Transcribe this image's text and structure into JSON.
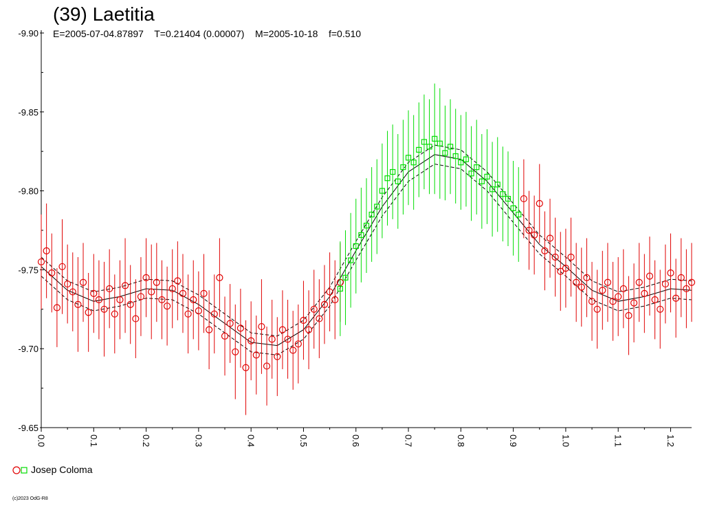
{
  "header": {
    "title": "(39) Laetitia",
    "subtitle": "E=2005-07-04.87897    T=0.21404 (0.00007)    M=2005-10-18    f=0.510"
  },
  "legend": {
    "label": "Josep Coloma"
  },
  "copyright": "(c)2023 OdG-R8",
  "colors": {
    "series_red": "#e00000",
    "series_green": "#00dd00",
    "model": "#000000"
  },
  "chart_data": {
    "type": "scatter",
    "title": "(39) Laetitia",
    "xlabel": "",
    "ylabel": "",
    "xlim": [
      0.0,
      1.24
    ],
    "ylim": [
      -9.65,
      -9.9
    ],
    "y_axis_inverted": true,
    "x_ticks": [
      "0.0",
      "0.1",
      "0.2",
      "0.3",
      "0.4",
      "0.5",
      "0.6",
      "0.7",
      "0.8",
      "0.9",
      "1.0",
      "1.1",
      "1.2"
    ],
    "y_ticks": [
      "-9.90",
      "-9.85",
      "-9.80",
      "-9.75",
      "-9.70",
      "-9.65"
    ],
    "x_tick_values": [
      0.0,
      0.1,
      0.2,
      0.3,
      0.4,
      0.5,
      0.6,
      0.7,
      0.8,
      0.9,
      1.0,
      1.1,
      1.2
    ],
    "y_tick_values": [
      -9.9,
      -9.85,
      -9.8,
      -9.75,
      -9.7,
      -9.65
    ],
    "grid": false,
    "legend_position": "bottom-left",
    "model_curve": {
      "x": [
        0.0,
        0.05,
        0.1,
        0.15,
        0.2,
        0.25,
        0.3,
        0.35,
        0.4,
        0.45,
        0.5,
        0.55,
        0.6,
        0.65,
        0.7,
        0.75,
        0.8,
        0.85,
        0.9,
        0.95,
        1.0,
        1.05,
        1.1,
        1.15,
        1.2,
        1.24
      ],
      "y": [
        -9.752,
        -9.737,
        -9.73,
        -9.733,
        -9.738,
        -9.737,
        -9.728,
        -9.716,
        -9.704,
        -9.702,
        -9.712,
        -9.733,
        -9.762,
        -9.79,
        -9.812,
        -9.823,
        -9.82,
        -9.806,
        -9.786,
        -9.766,
        -9.752,
        -9.737,
        -9.73,
        -9.733,
        -9.738,
        -9.737
      ],
      "band": 0.006
    },
    "series": [
      {
        "marker": "circle",
        "color": "#e00000",
        "x": [
          0.0,
          0.01,
          0.02,
          0.03,
          0.04,
          0.05,
          0.06,
          0.07,
          0.08,
          0.09,
          0.1,
          0.11,
          0.12,
          0.13,
          0.14,
          0.15,
          0.16,
          0.17,
          0.18,
          0.19,
          0.2,
          0.21,
          0.22,
          0.23,
          0.24,
          0.25,
          0.26,
          0.27,
          0.28,
          0.29,
          0.3,
          0.31,
          0.32,
          0.33,
          0.34,
          0.35,
          0.36,
          0.37,
          0.38,
          0.39,
          0.4,
          0.41,
          0.42,
          0.43,
          0.44,
          0.45,
          0.46,
          0.47,
          0.48,
          0.49,
          0.5,
          0.51,
          0.52,
          0.53,
          0.54,
          0.55,
          0.56,
          0.57,
          0.92,
          0.93,
          0.94,
          0.95,
          0.96,
          0.97,
          0.98,
          0.99,
          1.0,
          1.01,
          1.02,
          1.03,
          1.04,
          1.05,
          1.06,
          1.07,
          1.08,
          1.09,
          1.1,
          1.11,
          1.12,
          1.13,
          1.14,
          1.15,
          1.16,
          1.17,
          1.18,
          1.19,
          1.2,
          1.21,
          1.22,
          1.23,
          1.24
        ],
        "y": [
          -9.755,
          -9.762,
          -9.748,
          -9.726,
          -9.752,
          -9.741,
          -9.736,
          -9.728,
          -9.742,
          -9.723,
          -9.735,
          -9.731,
          -9.725,
          -9.738,
          -9.722,
          -9.731,
          -9.74,
          -9.728,
          -9.719,
          -9.733,
          -9.745,
          -9.736,
          -9.742,
          -9.731,
          -9.727,
          -9.738,
          -9.743,
          -9.735,
          -9.722,
          -9.731,
          -9.724,
          -9.735,
          -9.712,
          -9.722,
          -9.745,
          -9.708,
          -9.716,
          -9.698,
          -9.713,
          -9.688,
          -9.705,
          -9.696,
          -9.714,
          -9.689,
          -9.706,
          -9.695,
          -9.712,
          -9.706,
          -9.699,
          -9.703,
          -9.718,
          -9.712,
          -9.725,
          -9.719,
          -9.728,
          -9.736,
          -9.731,
          -9.742,
          -9.795,
          -9.775,
          -9.772,
          -9.792,
          -9.762,
          -9.77,
          -9.758,
          -9.749,
          -9.751,
          -9.758,
          -9.742,
          -9.739,
          -9.745,
          -9.73,
          -9.725,
          -9.737,
          -9.742,
          -9.73,
          -9.733,
          -9.738,
          -9.721,
          -9.729,
          -9.742,
          -9.735,
          -9.746,
          -9.731,
          -9.725,
          -9.741,
          -9.748,
          -9.732,
          -9.745,
          -9.738,
          -9.742
        ],
        "err": [
          0.03,
          0.03,
          0.025,
          0.025,
          0.03,
          0.025,
          0.025,
          0.03,
          0.025,
          0.025,
          0.025,
          0.025,
          0.03,
          0.025,
          0.025,
          0.025,
          0.03,
          0.025,
          0.025,
          0.025,
          0.025,
          0.03,
          0.025,
          0.025,
          0.025,
          0.025,
          0.025,
          0.025,
          0.025,
          0.025,
          0.025,
          0.025,
          0.025,
          0.025,
          0.025,
          0.025,
          0.025,
          0.03,
          0.025,
          0.03,
          0.025,
          0.025,
          0.03,
          0.025,
          0.025,
          0.025,
          0.025,
          0.025,
          0.025,
          0.025,
          0.025,
          0.025,
          0.025,
          0.025,
          0.025,
          0.025,
          0.025,
          0.025,
          0.025,
          0.025,
          0.025,
          0.025,
          0.025,
          0.025,
          0.025,
          0.025,
          0.025,
          0.025,
          0.025,
          0.025,
          0.025,
          0.025,
          0.025,
          0.025,
          0.025,
          0.025,
          0.025,
          0.025,
          0.025,
          0.025,
          0.025,
          0.025,
          0.025,
          0.025,
          0.025,
          0.025,
          0.025,
          0.025,
          0.025,
          0.025,
          0.025
        ]
      },
      {
        "marker": "square",
        "color": "#00dd00",
        "x": [
          0.57,
          0.58,
          0.59,
          0.6,
          0.61,
          0.62,
          0.63,
          0.64,
          0.65,
          0.66,
          0.67,
          0.68,
          0.69,
          0.7,
          0.71,
          0.72,
          0.73,
          0.74,
          0.75,
          0.76,
          0.77,
          0.78,
          0.79,
          0.8,
          0.81,
          0.82,
          0.83,
          0.84,
          0.85,
          0.86,
          0.87,
          0.88,
          0.89,
          0.9,
          0.91
        ],
        "y": [
          -9.738,
          -9.745,
          -9.756,
          -9.765,
          -9.772,
          -9.778,
          -9.785,
          -9.79,
          -9.8,
          -9.808,
          -9.812,
          -9.806,
          -9.815,
          -9.821,
          -9.818,
          -9.826,
          -9.831,
          -9.828,
          -9.833,
          -9.83,
          -9.824,
          -9.828,
          -9.822,
          -9.818,
          -9.82,
          -9.811,
          -9.815,
          -9.806,
          -9.809,
          -9.801,
          -9.804,
          -9.798,
          -9.795,
          -9.789,
          -9.785
        ],
        "err": [
          0.03,
          0.03,
          0.03,
          0.03,
          0.03,
          0.03,
          0.03,
          0.03,
          0.03,
          0.03,
          0.03,
          0.03,
          0.03,
          0.03,
          0.03,
          0.03,
          0.03,
          0.03,
          0.035,
          0.035,
          0.03,
          0.03,
          0.03,
          0.03,
          0.03,
          0.03,
          0.03,
          0.03,
          0.03,
          0.03,
          0.03,
          0.03,
          0.03,
          0.03,
          0.03
        ]
      }
    ]
  }
}
